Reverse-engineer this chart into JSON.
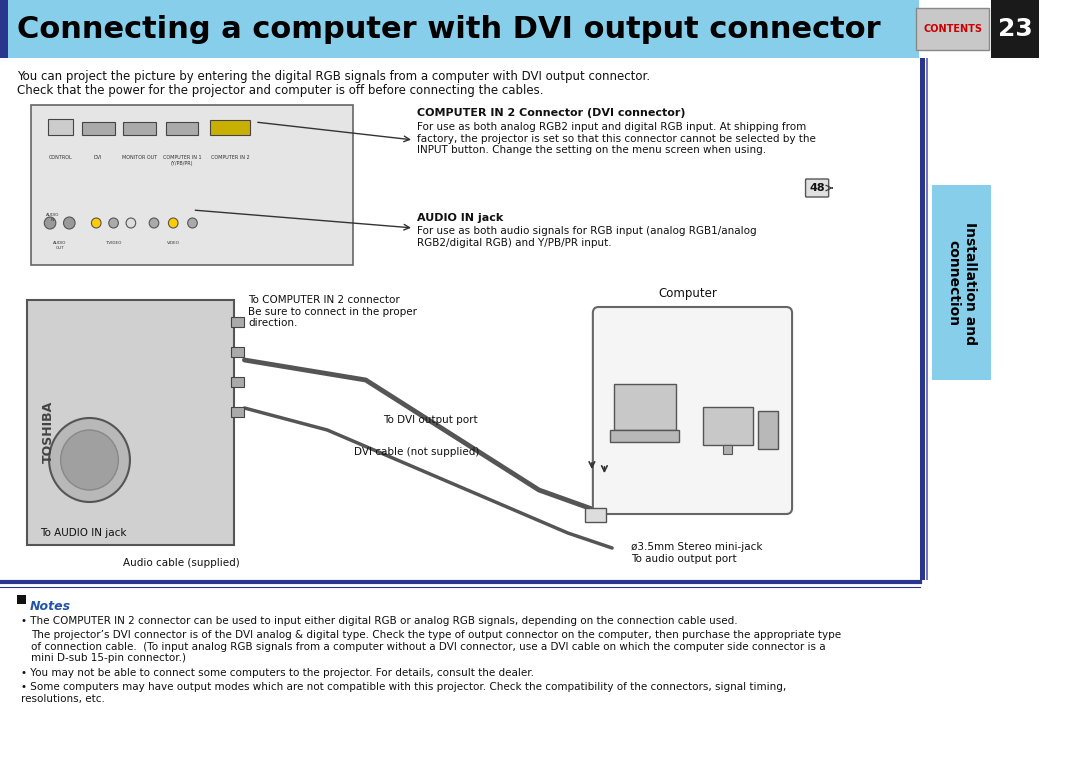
{
  "title": "Connecting a computer with DVI output connector",
  "title_bg": "#87CEEB",
  "title_color": "#000000",
  "page_bg": "#ffffff",
  "page_number": "23",
  "page_num_bg": "#1a1a1a",
  "page_num_color": "#ffffff",
  "contents_label": "CONTENTS",
  "contents_bg": "#b0b0b0",
  "contents_color": "#cc0000",
  "sidebar_label": "Installation and\nconnection",
  "sidebar_bg": "#87CEEB",
  "sidebar_color": "#000000",
  "header_stripe_color": "#2a3590",
  "intro_line1": "You can project the picture by entering the digital RGB signals from a computer with DVI output connector.",
  "intro_line2": "Check that the power for the projector and computer is off before connecting the cables.",
  "callout1_title": "COMPUTER IN 2 Connector (DVI connector)",
  "callout1_text": "For use as both analog RGB2 input and digital RGB input. At shipping from\nfactory, the projector is set so that this connector cannot be selected by the\nINPUT button. Change the setting on the menu screen when using.",
  "callout1_badge": "48",
  "callout2_title": "AUDIO IN jack",
  "callout2_text": "For use as both audio signals for RGB input (analog RGB1/analog\nRGB2/digital RGB) and Y/PB/PR input.",
  "label_comp_in2": "To COMPUTER IN 2 connector\nBe sure to connect in the proper\ndirection.",
  "label_dvi_port": "To DVI output port",
  "label_dvi_cable": "DVI cable (not supplied)",
  "label_audio_in": "To AUDIO IN jack",
  "label_audio_cable": "Audio cable (supplied)",
  "label_computer": "Computer",
  "label_stereo": "ø3.5mm Stereo mini-jack\nTo audio output port",
  "notes_title": "Notes",
  "note1": "The COMPUTER IN 2 connector can be used to input either digital RGB or analog RGB signals, depending on the connection cable used.",
  "note1b": "The projector’s DVI connector is of the DVI analog & digital type. Check the type of output connector on the computer, then purchase the appropriate type\nof connection cable.  (To input analog RGB signals from a computer without a DVI connector, use a DVI cable on which the computer side connector is a\nmini D-sub 15-pin connector.)",
  "note2": "You may not be able to connect some computers to the projector. For details, consult the dealer.",
  "note3": "Some computers may have output modes which are not compatible with this projector. Check the compatibility of the connectors, signal timing,\nresolutions, etc.",
  "divider_color": "#2a3590",
  "accent_blue": "#2a3590"
}
